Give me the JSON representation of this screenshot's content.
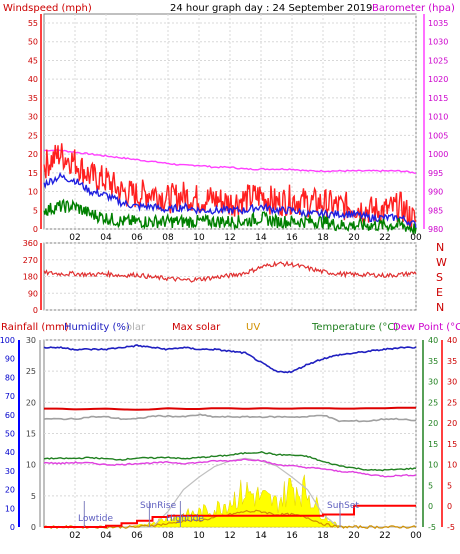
{
  "header": {
    "left_label": "Windspeed (mph)",
    "title": "24 hour graph day : 24 September 2019",
    "right_label": "Barometer (hpa)"
  },
  "labels": {
    "rainfall": "Rainfall (mm)",
    "humidity": "Humidity (%)",
    "solar_partial": "olar",
    "max_solar": "Max solar",
    "uv": "UV",
    "temperature": "Temperature (°C)",
    "dew_point": "Dew Point (°C)",
    "lowtide": "Lowtide",
    "sunrise": "SunRise",
    "hightide": "Hightide",
    "sunset": "SunSet"
  },
  "colors": {
    "wind_gust": "#ff2020",
    "wind_avg": "#2020e0",
    "wind_low": "#008000",
    "barometer": "#ff40ff",
    "direction": "#e03030",
    "rain": "#ff0000",
    "humidity": "#2020c0",
    "solar": "#ffff00",
    "max_solar": "#c0c0c0",
    "uv": "#d09000",
    "temperature": "#208020",
    "dew_point": "#e040e0",
    "gray_line": "#a0a0a0",
    "left_axis_top": "#ff0000",
    "rain_axis": "#0000ff",
    "humidity_axis": "#404040"
  },
  "chart_data": [
    {
      "type": "line",
      "title": "24 hour graph day : 24 September 2019",
      "xlabel": "",
      "x_ticks": [
        "02",
        "04",
        "06",
        "08",
        "10",
        "12",
        "14",
        "16",
        "18",
        "20",
        "22",
        "00"
      ],
      "ylabel_left": "Windspeed (mph)",
      "ylim_left": [
        0,
        55
      ],
      "y_ticks_left": [
        0,
        5,
        10,
        15,
        20,
        25,
        30,
        35,
        40,
        45,
        50,
        55
      ],
      "ylabel_right": "Barometer (hpa)",
      "ylim_right": [
        980,
        1035
      ],
      "y_ticks_right": [
        980,
        985,
        990,
        995,
        1000,
        1005,
        1010,
        1015,
        1020,
        1025,
        1030,
        1035
      ],
      "x": [
        0,
        1,
        2,
        3,
        4,
        5,
        6,
        7,
        8,
        9,
        10,
        11,
        12,
        13,
        14,
        15,
        16,
        17,
        18,
        19,
        20,
        21,
        22,
        23,
        24
      ],
      "series": [
        {
          "name": "gust",
          "axis": "left",
          "values": [
            17,
            20,
            18,
            14,
            13,
            10,
            9,
            10,
            8,
            9,
            8,
            8,
            7,
            8,
            9,
            7,
            8,
            7,
            7,
            6,
            6,
            5,
            5,
            6,
            2
          ]
        },
        {
          "name": "average",
          "axis": "left",
          "values": [
            12,
            14,
            13,
            10,
            9,
            7,
            6,
            6,
            5,
            6,
            5,
            5,
            5,
            5,
            6,
            5,
            5,
            4,
            4,
            4,
            4,
            3,
            3,
            3,
            1
          ]
        },
        {
          "name": "low",
          "axis": "left",
          "values": [
            5,
            6,
            6,
            4,
            3,
            2,
            2,
            2,
            2,
            2,
            2,
            2,
            2,
            2,
            3,
            2,
            2,
            2,
            2,
            1,
            1,
            1,
            1,
            1,
            0
          ]
        },
        {
          "name": "barometer",
          "axis": "right",
          "values": [
            1001,
            1001,
            1000.5,
            1000,
            999.5,
            999,
            998.5,
            998,
            997.5,
            997,
            997,
            996.5,
            996.5,
            996,
            996,
            996,
            996,
            995.5,
            995.5,
            995.5,
            995.5,
            995.5,
            995.5,
            995.5,
            995
          ]
        }
      ]
    },
    {
      "type": "line",
      "x_ticks": [
        "02",
        "04",
        "06",
        "08",
        "10",
        "12",
        "14",
        "16",
        "18",
        "20",
        "22",
        "00"
      ],
      "ylim": [
        0,
        360
      ],
      "y_ticks": [
        0,
        90,
        180,
        270,
        360
      ],
      "right_ticks": [
        "N",
        "W",
        "S",
        "E",
        "N"
      ],
      "x": [
        0,
        1,
        2,
        3,
        4,
        5,
        6,
        7,
        8,
        9,
        10,
        11,
        12,
        13,
        14,
        15,
        16,
        17,
        18,
        19,
        20,
        21,
        22,
        23,
        24
      ],
      "series": [
        {
          "name": "direction",
          "values": [
            200,
            195,
            195,
            190,
            195,
            185,
            190,
            175,
            170,
            160,
            165,
            175,
            185,
            200,
            230,
            250,
            245,
            225,
            205,
            195,
            190,
            190,
            185,
            190,
            200
          ]
        }
      ]
    },
    {
      "type": "line",
      "x_ticks": [
        "02",
        "04",
        "06",
        "08",
        "10",
        "12",
        "14",
        "16",
        "18",
        "20",
        "22",
        "00"
      ],
      "axes": {
        "humidity": {
          "ylim": [
            0,
            100
          ],
          "ticks": [
            0,
            10,
            20,
            30,
            40,
            50,
            60,
            70,
            80,
            90,
            100
          ]
        },
        "rainfall": {
          "ylim": [
            0,
            30
          ],
          "ticks": [
            0,
            5,
            10,
            15,
            20,
            25,
            30
          ]
        },
        "temperature": {
          "ylim": [
            -5,
            40
          ],
          "ticks": [
            -5,
            0,
            5,
            10,
            15,
            20,
            25,
            30,
            35,
            40
          ]
        },
        "dew_point": {
          "ylim": [
            -5,
            40
          ],
          "ticks": [
            -5,
            0,
            5,
            10,
            15,
            20,
            25,
            30,
            35,
            40
          ]
        }
      },
      "x": [
        0,
        1,
        2,
        3,
        4,
        5,
        6,
        7,
        8,
        9,
        10,
        11,
        12,
        13,
        14,
        15,
        16,
        17,
        18,
        19,
        20,
        21,
        22,
        23,
        24
      ],
      "series": [
        {
          "name": "humidity",
          "axis": "humidity",
          "values": [
            96,
            96,
            95,
            95,
            95,
            96,
            97,
            96,
            95,
            96,
            95,
            95,
            94,
            93,
            88,
            83,
            83,
            87,
            90,
            92,
            93,
            94,
            95,
            96,
            96
          ]
        },
        {
          "name": "temperature",
          "axis": "temperature",
          "values": [
            11.5,
            11.5,
            11.5,
            11.7,
            11.4,
            11.2,
            11.6,
            11.6,
            11.8,
            11.4,
            11.7,
            12,
            12.3,
            12.8,
            13,
            12.4,
            12.3,
            12,
            10.7,
            9.8,
            9.2,
            8.7,
            8.7,
            8.9,
            9.1
          ]
        },
        {
          "name": "dew_point",
          "axis": "dew_point",
          "values": [
            10.5,
            10.3,
            10.5,
            10.4,
            10,
            10,
            10.3,
            10.4,
            10.6,
            10.3,
            10.5,
            10.9,
            10.9,
            11.3,
            11,
            10,
            9.7,
            9.3,
            9,
            8.4,
            8.2,
            7.6,
            7.2,
            7.4,
            7.5
          ]
        },
        {
          "name": "gray_line",
          "axis": "temperature",
          "values": [
            21,
            21,
            21,
            21.5,
            21.5,
            21,
            21,
            21.7,
            21.7,
            21.5,
            22,
            21.5,
            21.5,
            21.5,
            21.5,
            21.5,
            21.5,
            21.5,
            22,
            20.5,
            20.5,
            20.5,
            21,
            21,
            20.5
          ]
        },
        {
          "name": "max_solar",
          "axis": "rainfall",
          "values": [
            0,
            0,
            0,
            0,
            0,
            0,
            0,
            0,
            2.5,
            6,
            8,
            9.7,
            10.6,
            11,
            10.6,
            9.8,
            8,
            6,
            2,
            0,
            0,
            0,
            0,
            0,
            0
          ]
        },
        {
          "name": "solar",
          "axis": "rainfall",
          "values": [
            0,
            0,
            0,
            0,
            0,
            0,
            0.2,
            0.8,
            1.5,
            2,
            2.5,
            3,
            4.5,
            6,
            5,
            4,
            7,
            6,
            2,
            0.2,
            0,
            0,
            0,
            0,
            0
          ]
        },
        {
          "name": "uv",
          "axis": "rainfall",
          "values": [
            0,
            0,
            0,
            0,
            0,
            0,
            0,
            0.3,
            0.5,
            1,
            1,
            1.5,
            2,
            2.5,
            2.5,
            2,
            2,
            1.5,
            0.5,
            0,
            0,
            0,
            0,
            0,
            0
          ]
        },
        {
          "name": "rainfall_cumulative",
          "axis": "rainfall",
          "values": [
            0,
            0,
            0,
            0,
            0.2,
            0.6,
            1,
            1.6,
            1.8,
            1.8,
            1.8,
            1.8,
            1.8,
            1.8,
            1.8,
            1.8,
            1.8,
            1.8,
            2,
            2,
            3.4,
            3.4,
            3.4,
            3.4,
            3.4
          ]
        }
      ],
      "events": [
        {
          "name": "Lowtide",
          "x": 2.6
        },
        {
          "name": "SunRise",
          "x": 6.8
        },
        {
          "name": "Hightide",
          "x": 8.8
        },
        {
          "name": "SunSet",
          "x": 19.1
        }
      ]
    }
  ]
}
